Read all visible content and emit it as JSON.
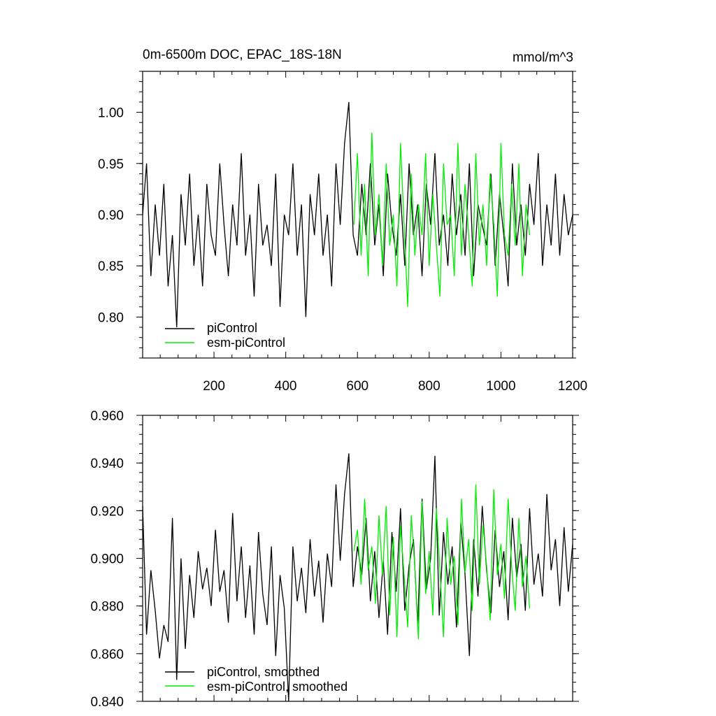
{
  "chart_data": [
    {
      "type": "line",
      "title": "0m-6500m DOC, EPAC_18S-18N",
      "units": "mmol/m^3",
      "xlabel": "",
      "ylabel": "",
      "xlim": [
        1,
        1200
      ],
      "ylim": [
        0.76,
        1.04
      ],
      "xticks": [
        200,
        400,
        600,
        800,
        1000,
        1200
      ],
      "xtick_labels": [
        "200",
        "400",
        "600",
        "800",
        "1000",
        "1200"
      ],
      "yticks": [
        0.8,
        0.85,
        0.9,
        0.95,
        1.0
      ],
      "ytick_labels": [
        "0.80",
        "0.85",
        "0.90",
        "0.95",
        "1.00"
      ],
      "grid": false,
      "legend_position": "bottom-left",
      "series": [
        {
          "name": "piControl",
          "color": "#000000",
          "x": [
            1,
            12,
            24,
            36,
            48,
            60,
            72,
            84,
            96,
            108,
            120,
            132,
            144,
            156,
            168,
            180,
            192,
            204,
            216,
            228,
            240,
            252,
            264,
            276,
            288,
            300,
            312,
            324,
            336,
            348,
            360,
            372,
            384,
            396,
            408,
            420,
            432,
            444,
            456,
            468,
            480,
            492,
            504,
            516,
            528,
            540,
            552,
            564,
            576,
            588,
            600,
            612,
            624,
            636,
            648,
            660,
            672,
            684,
            696,
            708,
            720,
            732,
            744,
            756,
            768,
            780,
            792,
            804,
            816,
            828,
            840,
            852,
            864,
            876,
            888,
            900,
            912,
            924,
            936,
            948,
            960,
            972,
            984,
            996,
            1008,
            1020,
            1032,
            1044,
            1056,
            1068,
            1080,
            1092,
            1104,
            1116,
            1128,
            1140,
            1152,
            1164,
            1176,
            1188,
            1200
          ],
          "y": [
            0.9,
            0.95,
            0.84,
            0.91,
            0.86,
            0.93,
            0.83,
            0.88,
            0.79,
            0.92,
            0.87,
            0.94,
            0.85,
            0.9,
            0.83,
            0.93,
            0.88,
            0.86,
            0.95,
            0.89,
            0.84,
            0.91,
            0.87,
            0.96,
            0.86,
            0.9,
            0.82,
            0.93,
            0.87,
            0.89,
            0.85,
            0.94,
            0.81,
            0.9,
            0.88,
            0.95,
            0.86,
            0.91,
            0.8,
            0.92,
            0.88,
            0.94,
            0.86,
            0.9,
            0.83,
            0.95,
            0.89,
            0.97,
            1.01,
            0.88,
            0.86,
            0.93,
            0.88,
            0.95,
            0.87,
            0.91,
            0.84,
            0.94,
            0.89,
            0.86,
            0.92,
            0.85,
            0.95,
            0.88,
            0.91,
            0.84,
            0.93,
            0.89,
            0.96,
            0.87,
            0.9,
            0.85,
            0.94,
            0.88,
            0.92,
            0.86,
            0.95,
            0.84,
            0.91,
            0.89,
            0.87,
            0.94,
            0.85,
            0.92,
            0.88,
            0.83,
            0.95,
            0.87,
            0.91,
            0.86,
            0.93,
            0.89,
            0.96,
            0.85,
            0.91,
            0.87,
            0.94,
            0.86,
            0.92,
            0.88,
            0.9
          ]
        },
        {
          "name": "esm-piControl",
          "color": "#00ee00",
          "x": [
            590,
            600,
            610,
            620,
            630,
            640,
            650,
            660,
            670,
            680,
            690,
            700,
            710,
            720,
            730,
            740,
            750,
            760,
            770,
            780,
            790,
            800,
            810,
            820,
            830,
            840,
            850,
            860,
            870,
            880,
            890,
            900,
            910,
            920,
            930,
            940,
            950,
            960,
            970,
            980,
            990,
            1000,
            1010,
            1020,
            1030,
            1040,
            1050,
            1060,
            1070,
            1080
          ],
          "y": [
            0.89,
            0.96,
            0.86,
            0.93,
            0.84,
            0.98,
            0.88,
            0.92,
            0.85,
            0.95,
            0.87,
            0.9,
            0.83,
            0.97,
            0.89,
            0.81,
            0.94,
            0.86,
            0.91,
            0.88,
            0.96,
            0.85,
            0.92,
            0.87,
            0.82,
            0.95,
            0.89,
            0.9,
            0.84,
            0.97,
            0.86,
            0.93,
            0.88,
            0.83,
            0.96,
            0.87,
            0.91,
            0.85,
            0.94,
            0.89,
            0.82,
            0.97,
            0.88,
            0.86,
            0.93,
            0.87,
            0.95,
            0.84,
            0.91,
            0.88
          ]
        }
      ]
    },
    {
      "type": "line",
      "title": "",
      "xlabel": "",
      "ylabel": "",
      "xlim": [
        1,
        1200
      ],
      "ylim": [
        0.84,
        0.96
      ],
      "xticks": [
        200,
        400,
        600,
        800,
        1000,
        1200
      ],
      "xtick_labels": [],
      "yticks": [
        0.84,
        0.86,
        0.88,
        0.9,
        0.92,
        0.94,
        0.96
      ],
      "ytick_labels": [
        "0.840",
        "0.860",
        "0.880",
        "0.900",
        "0.920",
        "0.940",
        "0.960"
      ],
      "grid": false,
      "legend_position": "bottom-left",
      "series": [
        {
          "name": "piControl, smoothed",
          "color": "#000000",
          "x": [
            1,
            12,
            24,
            36,
            48,
            60,
            72,
            84,
            96,
            108,
            120,
            132,
            144,
            156,
            168,
            180,
            192,
            204,
            216,
            228,
            240,
            252,
            264,
            276,
            288,
            300,
            312,
            324,
            336,
            348,
            360,
            372,
            384,
            396,
            408,
            420,
            432,
            444,
            456,
            468,
            480,
            492,
            504,
            516,
            528,
            540,
            552,
            564,
            576,
            588,
            600,
            612,
            624,
            636,
            648,
            660,
            672,
            684,
            696,
            708,
            720,
            732,
            744,
            756,
            768,
            780,
            792,
            804,
            816,
            828,
            840,
            852,
            864,
            876,
            888,
            900,
            912,
            924,
            936,
            948,
            960,
            972,
            984,
            996,
            1008,
            1020,
            1032,
            1044,
            1056,
            1068,
            1080,
            1092,
            1104,
            1116,
            1128,
            1140,
            1152,
            1164,
            1176,
            1188,
            1200
          ],
          "y": [
            0.922,
            0.868,
            0.895,
            0.878,
            0.858,
            0.872,
            0.865,
            0.917,
            0.849,
            0.9,
            0.862,
            0.893,
            0.875,
            0.903,
            0.887,
            0.896,
            0.88,
            0.912,
            0.886,
            0.895,
            0.873,
            0.919,
            0.882,
            0.905,
            0.875,
            0.897,
            0.868,
            0.911,
            0.885,
            0.872,
            0.905,
            0.859,
            0.893,
            0.879,
            0.84,
            0.905,
            0.882,
            0.896,
            0.877,
            0.908,
            0.884,
            0.899,
            0.873,
            0.902,
            0.888,
            0.931,
            0.899,
            0.927,
            0.944,
            0.888,
            0.905,
            0.893,
            0.917,
            0.882,
            0.903,
            0.875,
            0.899,
            0.868,
            0.911,
            0.886,
            0.921,
            0.878,
            0.897,
            0.908,
            0.872,
            0.925,
            0.887,
            0.9,
            0.943,
            0.876,
            0.911,
            0.889,
            0.905,
            0.871,
            0.915,
            0.893,
            0.859,
            0.908,
            0.884,
            0.922,
            0.895,
            0.877,
            0.912,
            0.888,
            0.903,
            0.874,
            0.917,
            0.892,
            0.906,
            0.878,
            0.921,
            0.889,
            0.902,
            0.884,
            0.927,
            0.895,
            0.908,
            0.88,
            0.913,
            0.886,
            0.906
          ]
        },
        {
          "name": "esm-piControl, smoothed",
          "color": "#00ee00",
          "x": [
            590,
            600,
            610,
            620,
            630,
            640,
            650,
            660,
            670,
            680,
            690,
            700,
            710,
            720,
            730,
            740,
            750,
            760,
            770,
            780,
            790,
            800,
            810,
            820,
            830,
            840,
            850,
            860,
            870,
            880,
            890,
            900,
            910,
            920,
            930,
            940,
            950,
            960,
            970,
            980,
            990,
            1000,
            1010,
            1020,
            1030,
            1040,
            1050,
            1060,
            1070,
            1080
          ],
          "y": [
            0.903,
            0.912,
            0.889,
            0.925,
            0.895,
            0.905,
            0.881,
            0.918,
            0.893,
            0.922,
            0.876,
            0.909,
            0.867,
            0.914,
            0.893,
            0.871,
            0.918,
            0.896,
            0.866,
            0.924,
            0.885,
            0.903,
            0.876,
            0.921,
            0.895,
            0.867,
            0.917,
            0.889,
            0.901,
            0.872,
            0.925,
            0.894,
            0.908,
            0.878,
            0.931,
            0.889,
            0.914,
            0.897,
            0.874,
            0.929,
            0.893,
            0.906,
            0.883,
            0.925,
            0.896,
            0.878,
            0.917,
            0.888,
            0.901,
            0.879
          ]
        }
      ]
    }
  ]
}
